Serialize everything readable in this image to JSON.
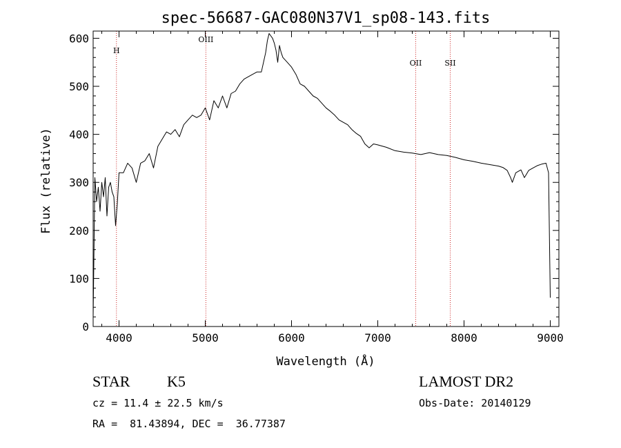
{
  "chart_data": {
    "type": "line",
    "title": "spec-56687-GAC080N37V1_sp08-143.fits",
    "xlabel": "Wavelength (Å)",
    "ylabel": "Flux (relative)",
    "xlim": [
      3700,
      9100
    ],
    "ylim": [
      0,
      615
    ],
    "xticks": [
      4000,
      5000,
      6000,
      7000,
      8000,
      9000
    ],
    "yticks": [
      0,
      100,
      200,
      300,
      400,
      500,
      600
    ],
    "grid": false,
    "series": [
      {
        "color": "#000000",
        "x": [
          3700,
          3720,
          3740,
          3760,
          3780,
          3800,
          3820,
          3840,
          3860,
          3880,
          3900,
          3920,
          3940,
          3960,
          3980,
          4000,
          4050,
          4100,
          4150,
          4200,
          4250,
          4300,
          4350,
          4400,
          4450,
          4500,
          4550,
          4600,
          4650,
          4700,
          4750,
          4800,
          4850,
          4900,
          4950,
          5000,
          5050,
          5100,
          5150,
          5200,
          5250,
          5300,
          5350,
          5400,
          5450,
          5500,
          5550,
          5600,
          5650,
          5700,
          5720,
          5740,
          5760,
          5780,
          5800,
          5820,
          5840,
          5860,
          5880,
          5900,
          5950,
          6000,
          6050,
          6100,
          6150,
          6200,
          6250,
          6300,
          6350,
          6400,
          6450,
          6500,
          6550,
          6600,
          6650,
          6700,
          6750,
          6800,
          6850,
          6900,
          6950,
          7000,
          7100,
          7200,
          7300,
          7400,
          7500,
          7600,
          7700,
          7800,
          7900,
          8000,
          8100,
          8200,
          8300,
          8400,
          8450,
          8500,
          8540,
          8560,
          8600,
          8660,
          8700,
          8750,
          8800,
          8850,
          8900,
          8950,
          8980,
          9000
        ],
        "y": [
          20,
          310,
          260,
          290,
          240,
          300,
          270,
          310,
          230,
          290,
          300,
          280,
          270,
          210,
          255,
          320,
          320,
          340,
          330,
          300,
          340,
          345,
          360,
          330,
          375,
          390,
          405,
          400,
          410,
          395,
          420,
          430,
          440,
          435,
          440,
          455,
          430,
          470,
          455,
          480,
          455,
          485,
          490,
          505,
          515,
          520,
          525,
          530,
          530,
          570,
          595,
          610,
          605,
          600,
          590,
          575,
          550,
          585,
          570,
          560,
          550,
          540,
          525,
          505,
          500,
          490,
          480,
          475,
          465,
          455,
          448,
          440,
          430,
          425,
          420,
          410,
          402,
          396,
          380,
          372,
          380,
          378,
          373,
          366,
          363,
          361,
          358,
          362,
          358,
          356,
          352,
          347,
          344,
          340,
          337,
          334,
          331,
          325,
          310,
          300,
          320,
          326,
          310,
          325,
          330,
          335,
          338,
          340,
          320,
          60
        ]
      }
    ],
    "lines": [
      {
        "label": "H",
        "x": 3970
      },
      {
        "label": "OIII",
        "x": 5007
      },
      {
        "label": "OII",
        "x": 7440
      },
      {
        "label": "SII",
        "x": 7840
      }
    ]
  },
  "info": {
    "object_class": "STAR",
    "subclass": "K5",
    "survey": "LAMOST DR2",
    "redshift": "cz = 11.4 ± 22.5 km/s",
    "obs_date": "Obs-Date: 20140129",
    "coords": "RA =  81.43894, DEC =  36.77387"
  }
}
